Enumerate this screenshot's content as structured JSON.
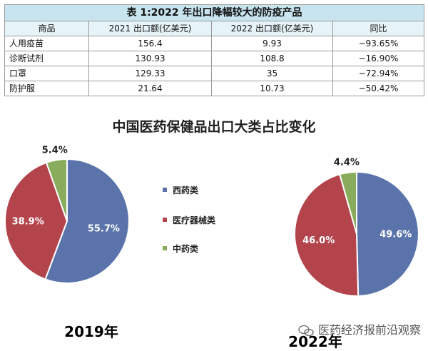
{
  "table": {
    "caption": "表 1:2022 年出口降幅较大的防疫产品",
    "headers": [
      "商品",
      "2021 出口额(亿美元)",
      "2022 出口额(亿美元)",
      "同比"
    ],
    "rows": [
      [
        "人用疫苗",
        "156.4",
        "9.93",
        "−93.65%"
      ],
      [
        "诊断试剂",
        "130.93",
        "108.8",
        "−16.90%"
      ],
      [
        "口罩",
        "129.33",
        "35",
        "−72.94%"
      ],
      [
        "防护服",
        "21.64",
        "10.73",
        "−50.42%"
      ]
    ]
  },
  "chart_data": [
    {
      "type": "pie",
      "title": "中国医药保健品出口大类占比变化",
      "caption": "2019年",
      "categories": [
        "西药类",
        "医疗器械类",
        "中药类"
      ],
      "values": [
        55.7,
        38.9,
        5.4
      ],
      "labels": [
        "55.7%",
        "38.9%",
        "5.4%"
      ],
      "colors": [
        "#5a74ab",
        "#b3444c",
        "#88ab5c"
      ],
      "legend": "center"
    },
    {
      "type": "pie",
      "caption": "2022年",
      "categories": [
        "西药类",
        "医疗器械类",
        "中药类"
      ],
      "values": [
        49.6,
        46.0,
        4.4
      ],
      "labels": [
        "49.6%",
        "46.0%",
        "4.4%"
      ],
      "colors": [
        "#5a74ab",
        "#b3444c",
        "#88ab5c"
      ]
    }
  ],
  "watermark": {
    "text": "医药经济报前沿观察",
    "icon": "wechat-icon"
  }
}
